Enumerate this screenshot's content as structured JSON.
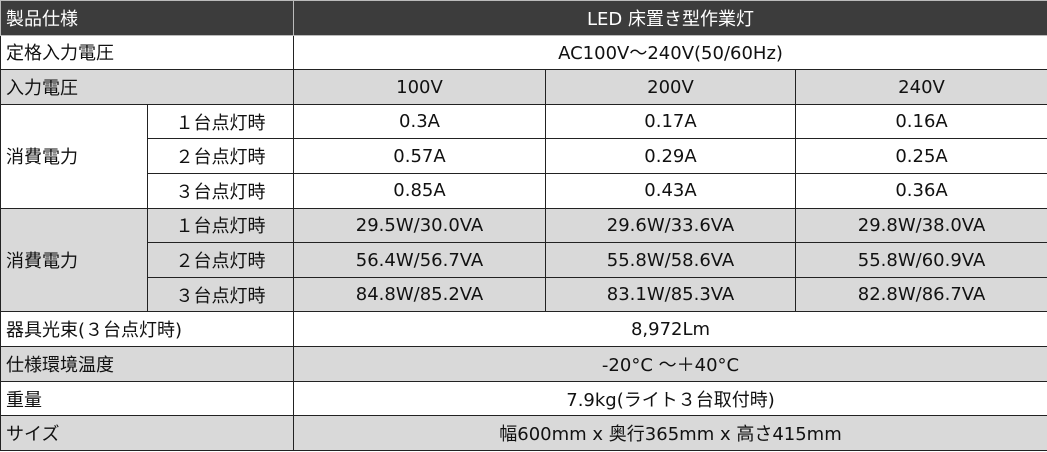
{
  "header": {
    "label": "製品仕様",
    "title": "LED 床置き型作業灯"
  },
  "rated_voltage": {
    "label": "定格入力電圧",
    "value": "AC100V～240V(50/60Hz)"
  },
  "input_voltage": {
    "label": "入力電圧",
    "columns": [
      "100V",
      "200V",
      "240V"
    ]
  },
  "current": {
    "label": "消費電力",
    "rows": [
      {
        "condition": "１台点灯時",
        "values": [
          "0.3A",
          "0.17A",
          "0.16A"
        ]
      },
      {
        "condition": "２台点灯時",
        "values": [
          "0.57A",
          "0.29A",
          "0.25A"
        ]
      },
      {
        "condition": "３台点灯時",
        "values": [
          "0.85A",
          "0.43A",
          "0.36A"
        ]
      }
    ]
  },
  "power": {
    "label": "消費電力",
    "rows": [
      {
        "condition": "１台点灯時",
        "values": [
          "29.5W/30.0VA",
          "29.6W/33.6VA",
          "29.8W/38.0VA"
        ]
      },
      {
        "condition": "２台点灯時",
        "values": [
          "56.4W/56.7VA",
          "55.8W/58.6VA",
          "55.8W/60.9VA"
        ]
      },
      {
        "condition": "３台点灯時",
        "values": [
          "84.8W/85.2VA",
          "83.1W/85.3VA",
          "82.8W/86.7VA"
        ]
      }
    ]
  },
  "specs": [
    {
      "label": "器具光束(３台点灯時)",
      "value": "8,972Lm"
    },
    {
      "label": "仕様環境温度",
      "value": "-20°C ～＋40°C"
    },
    {
      "label": "重量",
      "value": "7.9kg(ライト３台取付時)"
    },
    {
      "label": "サイズ",
      "value": "幅600mm x 奥行365mm x 高さ415mm"
    }
  ]
}
